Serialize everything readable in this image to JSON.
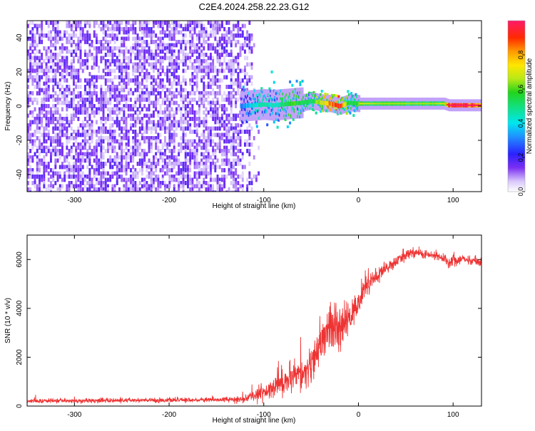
{
  "title": "C2E4.2024.258.22.23.G12",
  "colors": {
    "snr_line": "#ee3333",
    "axes": "#000000",
    "background": "#ffffff",
    "noise_purple": "#7b2ff2",
    "noise_light": "#cbb5f7"
  },
  "chart_data": [
    {
      "type": "heatmap",
      "title": "C2E4.2024.258.22.23.G12",
      "xlabel": "Height of straight line (km)",
      "ylabel": "Frequency (Hz)",
      "xlim": [
        -350,
        130
      ],
      "ylim": [
        -50,
        50
      ],
      "x_ticks": [
        -300,
        -200,
        -100,
        0,
        100
      ],
      "y_ticks": [
        -40,
        -20,
        0,
        20,
        40
      ],
      "grid": false,
      "colorbar": {
        "label": "Normalized spectral amplitude",
        "range": [
          0,
          1
        ],
        "ticks": [
          0.0,
          0.2,
          0.4,
          0.6,
          0.8
        ],
        "colormap": "rainbow (white-violet-blue-cyan-green-yellow-orange-red-magenta)"
      },
      "ridge": {
        "x": [
          -125,
          -110,
          -100,
          -90,
          -80,
          -70,
          -60,
          -50,
          -40,
          -30,
          -20,
          -10,
          0,
          20,
          40,
          60,
          80,
          90,
          95,
          110,
          130
        ],
        "freq_hz": [
          0,
          0.5,
          1,
          0.5,
          1,
          1.5,
          2,
          3,
          2,
          1.5,
          0,
          2,
          1.5,
          1.5,
          1.5,
          1.5,
          1.5,
          1.5,
          0.5,
          0.5,
          0.5
        ],
        "amplitude": [
          0.3,
          0.45,
          0.5,
          0.45,
          0.55,
          0.6,
          0.55,
          0.6,
          0.7,
          0.9,
          0.95,
          0.55,
          0.6,
          0.55,
          0.55,
          0.55,
          0.55,
          0.6,
          0.9,
          0.95,
          0.85
        ]
      },
      "noise_region_x": [
        -350,
        -125
      ]
    },
    {
      "type": "line",
      "xlabel": "Height of straight line (km)",
      "ylabel": "SNR (10 * v/v)",
      "xlim": [
        -350,
        130
      ],
      "ylim": [
        0,
        7000
      ],
      "x_ticks": [
        -300,
        -200,
        -100,
        0,
        100
      ],
      "y_ticks": [
        0,
        2000,
        4000,
        6000
      ],
      "grid": false,
      "series": [
        {
          "x": [
            -350,
            -300,
            -250,
            -200,
            -150,
            -120,
            -105,
            -90,
            -80,
            -70,
            -60,
            -50,
            -40,
            -30,
            -20,
            -10,
            0,
            5,
            10,
            20,
            30,
            40,
            50,
            60,
            70,
            80,
            90,
            95,
            100,
            110,
            120,
            130
          ],
          "y": [
            200,
            220,
            230,
            240,
            260,
            280,
            500,
            800,
            1000,
            1100,
            1300,
            1600,
            2500,
            3200,
            3000,
            3600,
            4200,
            4800,
            5000,
            5300,
            5700,
            5900,
            6200,
            6300,
            6200,
            6150,
            6050,
            5900,
            6000,
            6000,
            5950,
            5900
          ],
          "spread": [
            80,
            80,
            80,
            80,
            80,
            120,
            300,
            450,
            500,
            550,
            600,
            650,
            700,
            900,
            800,
            700,
            400,
            500,
            350,
            300,
            250,
            200,
            200,
            200,
            150,
            150,
            150,
            250,
            250,
            150,
            150,
            150
          ]
        }
      ]
    }
  ]
}
